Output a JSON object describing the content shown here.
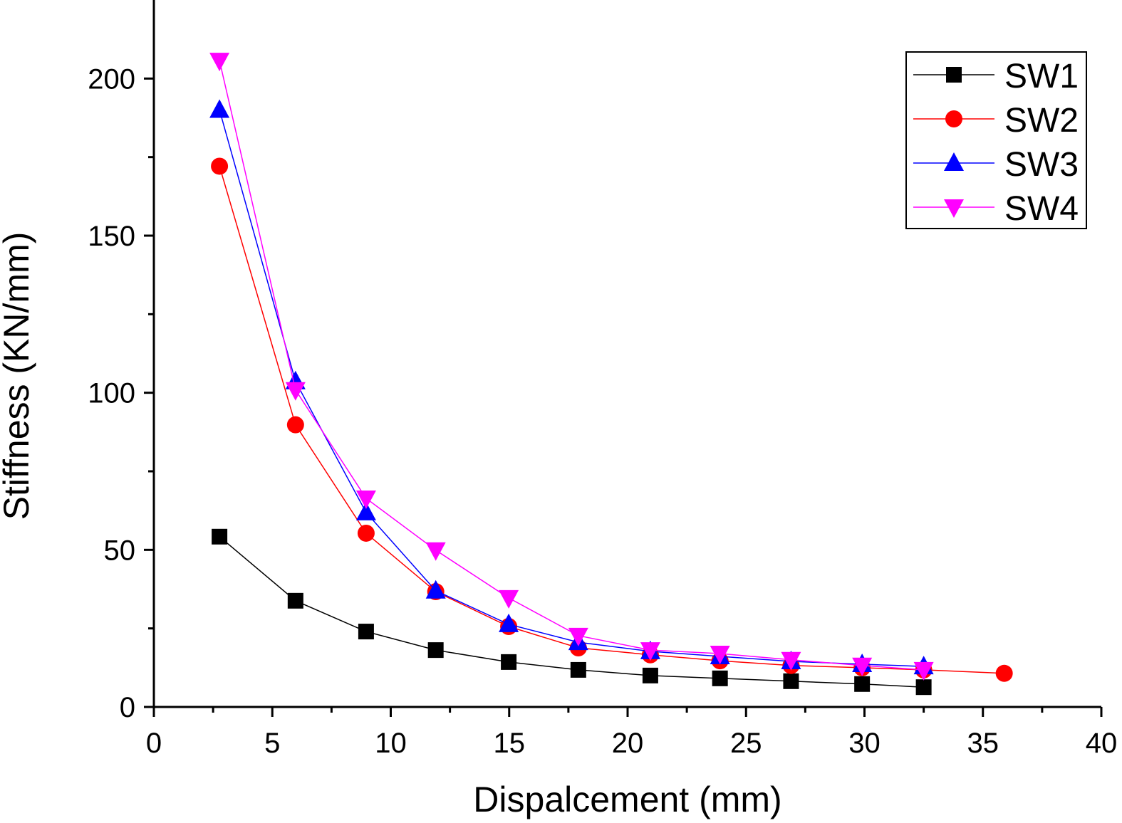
{
  "chart_data": {
    "type": "line",
    "title": "",
    "xlabel": "Dispalcement (mm)",
    "ylabel": "Stiffness (KN/mm)",
    "xlim": [
      0,
      40
    ],
    "ylim": [
      0,
      225
    ],
    "xticks": [
      0,
      5,
      10,
      15,
      20,
      25,
      30,
      35,
      40
    ],
    "yticks": [
      0,
      50,
      100,
      150,
      200
    ],
    "grid": false,
    "legend_position": "top-right",
    "series": [
      {
        "name": "SW1",
        "color": "#000000",
        "marker": "square",
        "x": [
          2.77,
          5.98,
          8.96,
          11.9,
          14.98,
          17.92,
          20.96,
          23.9,
          26.9,
          29.9,
          32.5
        ],
        "y": [
          54.2,
          33.8,
          24.0,
          18.1,
          14.3,
          11.8,
          10.0,
          9.1,
          8.2,
          7.3,
          6.3
        ]
      },
      {
        "name": "SW2",
        "color": "#ff0000",
        "marker": "circle",
        "x": [
          2.77,
          5.98,
          8.96,
          11.9,
          14.98,
          17.92,
          20.96,
          23.9,
          26.9,
          29.9,
          32.5,
          35.9
        ],
        "y": [
          172.1,
          89.8,
          55.3,
          36.7,
          25.6,
          18.8,
          16.6,
          14.7,
          13.2,
          12.5,
          11.8,
          10.7
        ]
      },
      {
        "name": "SW3",
        "color": "#0000ff",
        "marker": "triangle-up",
        "x": [
          2.77,
          5.98,
          8.96,
          11.9,
          14.98,
          17.92,
          20.96,
          23.9,
          26.9,
          29.9,
          32.5
        ],
        "y": [
          190.0,
          103.6,
          61.9,
          37.0,
          26.3,
          20.6,
          17.7,
          16.1,
          14.5,
          13.6,
          12.9
        ]
      },
      {
        "name": "SW4",
        "color": "#ff00ff",
        "marker": "triangle-down",
        "x": [
          2.77,
          5.98,
          8.96,
          11.9,
          14.98,
          17.92,
          20.96,
          23.9,
          26.9,
          29.9,
          32.5
        ],
        "y": [
          205.7,
          100.9,
          66.4,
          49.9,
          34.7,
          22.7,
          18.1,
          17.0,
          15.0,
          13.2,
          11.8
        ]
      }
    ]
  }
}
